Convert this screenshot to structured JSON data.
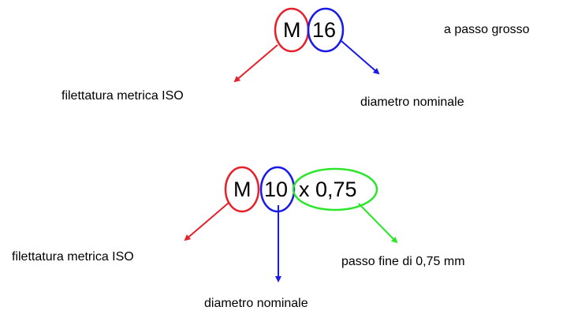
{
  "example_coarse": {
    "symbol": "M",
    "diameter": "16",
    "type_label": "a passo grosso",
    "symbol_meaning": "filettatura metrica ISO",
    "diameter_meaning": "diametro nominale"
  },
  "example_fine": {
    "symbol": "M",
    "diameter": "10",
    "pitch": "x 0,75",
    "symbol_meaning": "filettatura metrica ISO",
    "diameter_meaning": "diametro nominale",
    "pitch_meaning": "passo fine di 0,75 mm"
  },
  "colors": {
    "symbol": "#e8202a",
    "diameter": "#1a1ae6",
    "pitch": "#2be62b"
  }
}
